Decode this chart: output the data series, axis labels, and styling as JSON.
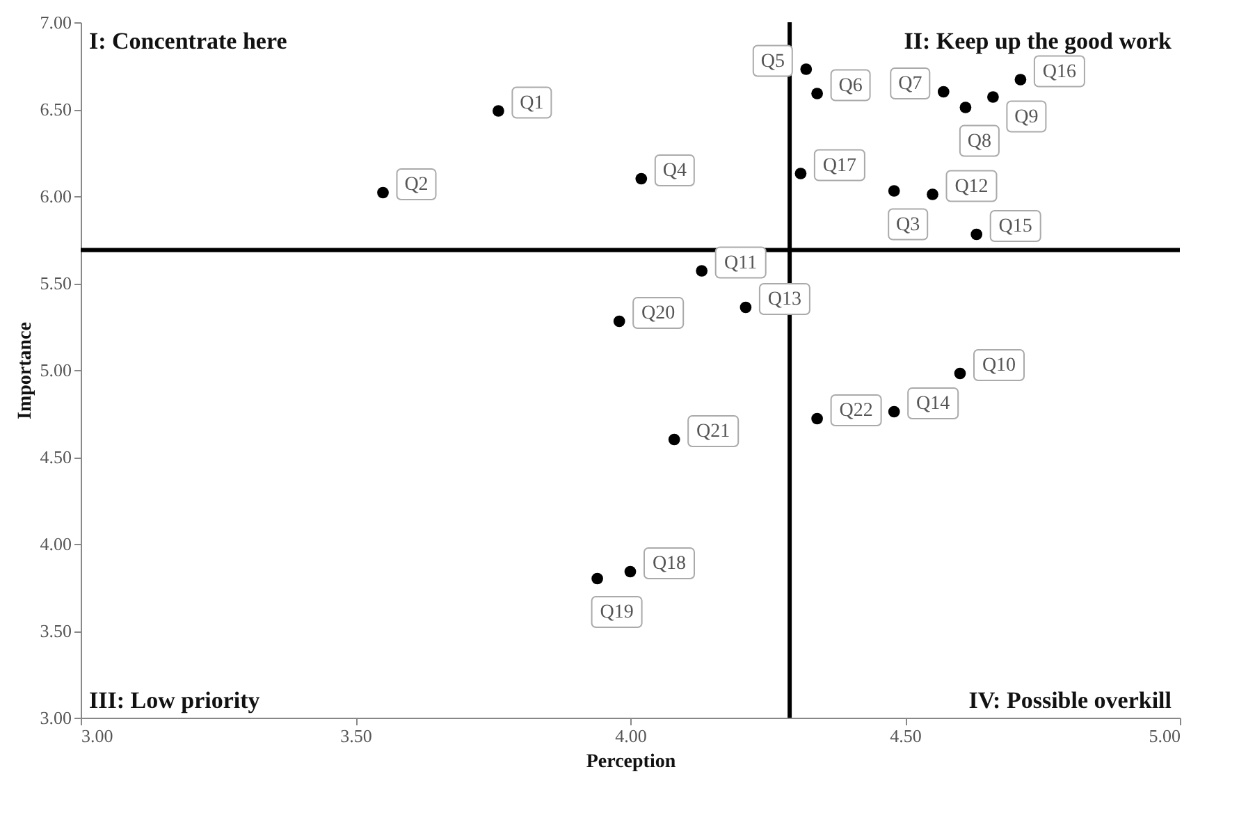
{
  "chart_data": {
    "type": "scatter",
    "xlabel": "Perception",
    "ylabel": "Importance",
    "xlim": [
      3,
      5
    ],
    "ylim": [
      3,
      7
    ],
    "xticks": [
      {
        "value": 3,
        "label": "3.00"
      },
      {
        "value": 3.5,
        "label": "3.50"
      },
      {
        "value": 4,
        "label": "4.00"
      },
      {
        "value": 4.5,
        "label": "4.50"
      },
      {
        "value": 5,
        "label": "5.00"
      }
    ],
    "yticks": [
      {
        "value": 3,
        "label": "3.00"
      },
      {
        "value": 3.5,
        "label": "3.50"
      },
      {
        "value": 4,
        "label": "4.00"
      },
      {
        "value": 4.5,
        "label": "4.50"
      },
      {
        "value": 5,
        "label": "5.00"
      },
      {
        "value": 5.5,
        "label": "5.50"
      },
      {
        "value": 6,
        "label": "6.00"
      },
      {
        "value": 6.5,
        "label": "6.50"
      },
      {
        "value": 7,
        "label": "7.00"
      }
    ],
    "grid": false,
    "legend": false,
    "marker": "circle",
    "series": [
      {
        "name": "Q1",
        "color": "#000000",
        "x": [
          3.76
        ],
        "values": [
          6.49
        ]
      },
      {
        "name": "Q2",
        "color": "#000000",
        "x": [
          3.55
        ],
        "values": [
          6.02
        ]
      },
      {
        "name": "Q3",
        "color": "#000000",
        "x": [
          4.48
        ],
        "values": [
          6.03
        ]
      },
      {
        "name": "Q4",
        "color": "#000000",
        "x": [
          4.02
        ],
        "values": [
          6.1
        ]
      },
      {
        "name": "Q5",
        "color": "#000000",
        "x": [
          4.32
        ],
        "values": [
          6.73
        ]
      },
      {
        "name": "Q6",
        "color": "#000000",
        "x": [
          4.34
        ],
        "values": [
          6.59
        ]
      },
      {
        "name": "Q7",
        "color": "#000000",
        "x": [
          4.57
        ],
        "values": [
          6.6
        ]
      },
      {
        "name": "Q8",
        "color": "#000000",
        "x": [
          4.61
        ],
        "values": [
          6.51
        ]
      },
      {
        "name": "Q9",
        "color": "#000000",
        "x": [
          4.66
        ],
        "values": [
          6.57
        ]
      },
      {
        "name": "Q10",
        "color": "#000000",
        "x": [
          4.6
        ],
        "values": [
          4.98
        ]
      },
      {
        "name": "Q11",
        "color": "#000000",
        "x": [
          4.13
        ],
        "values": [
          5.57
        ]
      },
      {
        "name": "Q12",
        "color": "#000000",
        "x": [
          4.55
        ],
        "values": [
          6.01
        ]
      },
      {
        "name": "Q13",
        "color": "#000000",
        "x": [
          4.21
        ],
        "values": [
          5.36
        ]
      },
      {
        "name": "Q14",
        "color": "#000000",
        "x": [
          4.48
        ],
        "values": [
          4.76
        ]
      },
      {
        "name": "Q15",
        "color": "#000000",
        "x": [
          4.63
        ],
        "values": [
          5.78
        ]
      },
      {
        "name": "Q16",
        "color": "#000000",
        "x": [
          4.71
        ],
        "values": [
          6.67
        ]
      },
      {
        "name": "Q17",
        "color": "#000000",
        "x": [
          4.31
        ],
        "values": [
          6.13
        ]
      },
      {
        "name": "Q18",
        "color": "#000000",
        "x": [
          4.0
        ],
        "values": [
          3.84
        ]
      },
      {
        "name": "Q19",
        "color": "#000000",
        "x": [
          3.94
        ],
        "values": [
          3.8
        ]
      },
      {
        "name": "Q20",
        "color": "#000000",
        "x": [
          3.98
        ],
        "values": [
          5.28
        ]
      },
      {
        "name": "Q21",
        "color": "#000000",
        "x": [
          4.08
        ],
        "values": [
          4.6
        ]
      },
      {
        "name": "Q22",
        "color": "#000000",
        "x": [
          4.34
        ],
        "values": [
          4.72
        ]
      }
    ],
    "ref_lines": [
      {
        "axis": "x",
        "value": 4.29,
        "color": "#000000"
      },
      {
        "axis": "y",
        "value": 5.69,
        "color": "#000000"
      }
    ],
    "annotations": [
      "I: Concentrate here",
      "II: Keep up the good work",
      "III: Low priority",
      "IV: Possible overkill"
    ]
  }
}
